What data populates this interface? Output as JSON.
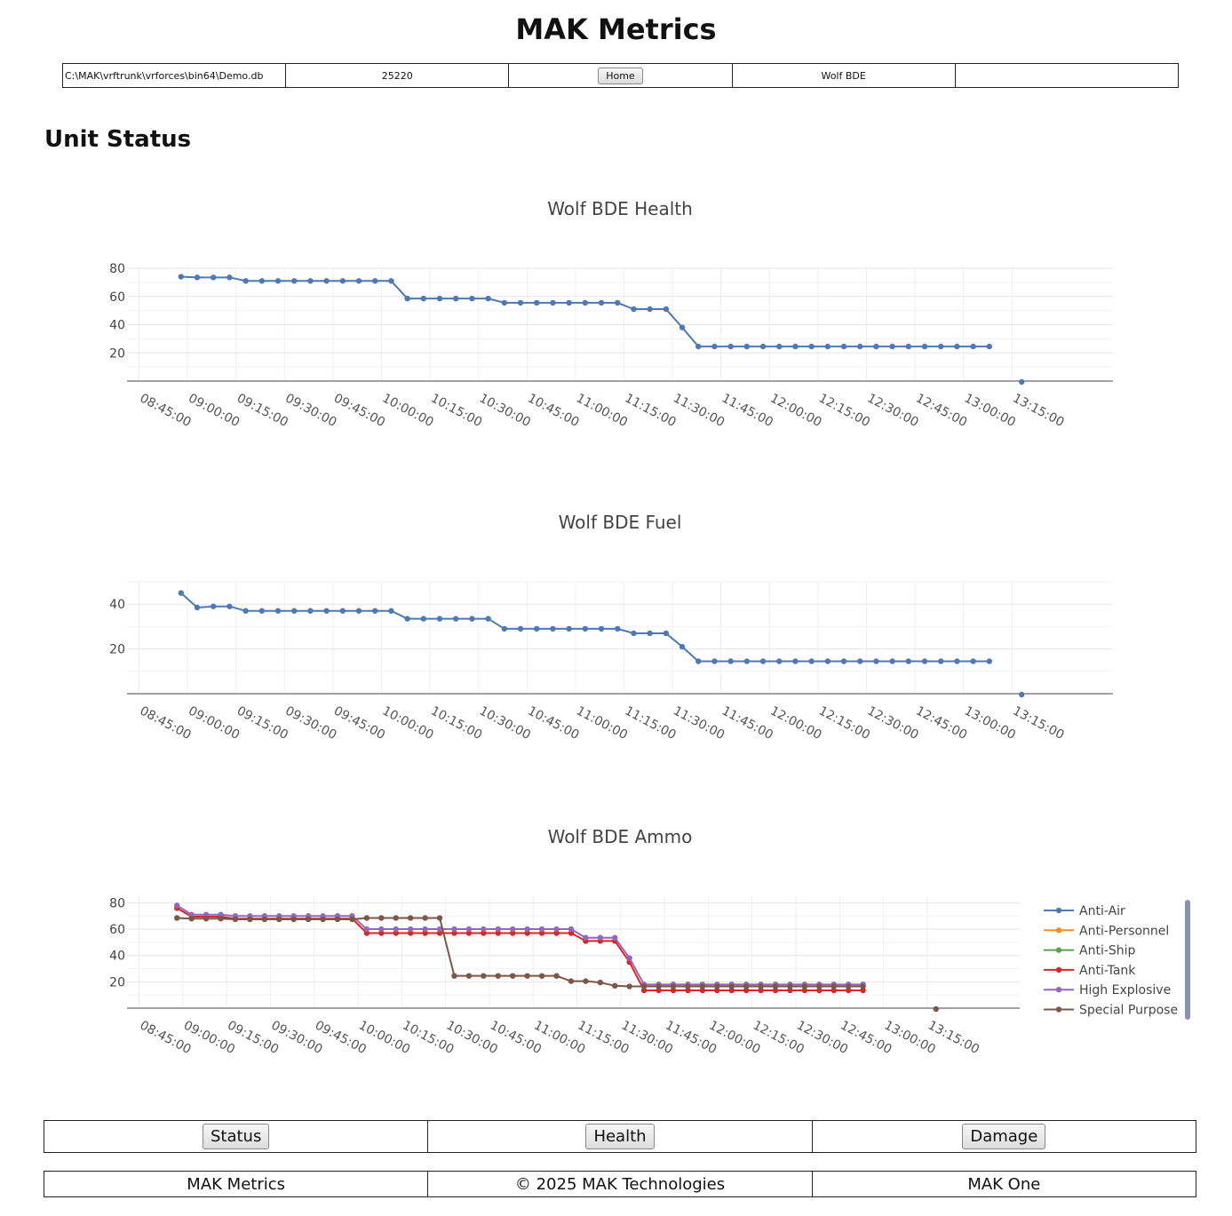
{
  "header": {
    "title": "MAK Metrics",
    "db_path": "C:\\MAK\\vrftrunk\\vrforces\\bin64\\Demo.db",
    "session_id": "25220",
    "home_label": "Home",
    "unit_name": "Wolf BDE",
    "extra": ""
  },
  "section": {
    "title": "Unit Status"
  },
  "charts": {
    "x_tick_labels": [
      "08:45:00",
      "09:00:00",
      "09:15:00",
      "09:30:00",
      "09:45:00",
      "10:00:00",
      "10:15:00",
      "10:30:00",
      "10:45:00",
      "11:00:00",
      "11:15:00",
      "11:30:00",
      "11:45:00",
      "12:00:00",
      "12:15:00",
      "12:30:00",
      "12:45:00",
      "13:00:00",
      "13:15:00"
    ],
    "series_color": "#4e79b4"
  },
  "chart_data": [
    {
      "type": "line",
      "title": "Wolf BDE Health",
      "x_start": "08:58:00",
      "x_step_seconds": 300,
      "ylim": [
        0,
        80
      ],
      "y_ticks": [
        20,
        40,
        60,
        80
      ],
      "grid": true,
      "series": [
        {
          "color": "#4e79b4",
          "values": [
            74,
            73.5,
            73.5,
            73.5,
            71,
            71,
            71,
            71,
            71,
            71,
            71,
            71,
            71,
            71,
            58.5,
            58.5,
            58.5,
            58.5,
            58.5,
            58.5,
            55.5,
            55.5,
            55.5,
            55.5,
            55.5,
            55.5,
            55.5,
            55.5,
            51,
            51,
            51,
            38,
            24.5,
            24.5,
            24.5,
            24.5,
            24.5,
            24.5,
            24.5,
            24.5,
            24.5,
            24.5,
            24.5,
            24.5,
            24.5,
            24.5,
            24.5,
            24.5,
            24.5,
            24.5,
            24.5
          ],
          "extra_point": {
            "x": "13:18:00",
            "y": 0
          }
        }
      ]
    },
    {
      "type": "line",
      "title": "Wolf BDE Fuel",
      "x_start": "08:58:00",
      "x_step_seconds": 300,
      "ylim": [
        0,
        50
      ],
      "y_ticks": [
        20,
        40
      ],
      "grid": true,
      "series": [
        {
          "color": "#4e79b4",
          "values": [
            45,
            38.5,
            39,
            39,
            37,
            37,
            37,
            37,
            37,
            37,
            37,
            37,
            37,
            37,
            33.5,
            33.5,
            33.5,
            33.5,
            33.5,
            33.5,
            29,
            29,
            29,
            29,
            29,
            29,
            29,
            29,
            27,
            27,
            27,
            21,
            14.5,
            14.5,
            14.5,
            14.5,
            14.5,
            14.5,
            14.5,
            14.5,
            14.5,
            14.5,
            14.5,
            14.5,
            14.5,
            14.5,
            14.5,
            14.5,
            14.5,
            14.5,
            14.5
          ],
          "extra_point": {
            "x": "13:18:00",
            "y": 0
          }
        }
      ]
    },
    {
      "type": "line",
      "title": "Wolf BDE Ammo",
      "x_start": "08:58:00",
      "x_step_seconds": 300,
      "ylim": [
        0,
        85
      ],
      "y_ticks": [
        20,
        40,
        60,
        80
      ],
      "grid": true,
      "legend": "right",
      "series": [
        {
          "name": "Anti-Air",
          "color": "#4e79b4",
          "values": []
        },
        {
          "name": "Anti-Personnel",
          "color": "#f28e2b",
          "values": []
        },
        {
          "name": "Anti-Ship",
          "color": "#59a14f",
          "values": []
        },
        {
          "name": "Anti-Tank",
          "color": "#d62728",
          "values": [
            76,
            69.5,
            69.5,
            69.5,
            68,
            68,
            68,
            68,
            68,
            68,
            68,
            68,
            68,
            57,
            57,
            57,
            57,
            57,
            57,
            57,
            57,
            57,
            57,
            57,
            57,
            57,
            57,
            57,
            51,
            51,
            51,
            35,
            13.5,
            13.5,
            13.5,
            13.5,
            13.5,
            13.5,
            13.5,
            13.5,
            13.5,
            13.5,
            13.5,
            13.5,
            13.5,
            13.5,
            13.5,
            13.5
          ]
        },
        {
          "name": "High Explosive",
          "color": "#9467bd",
          "values": [
            78,
            71,
            71,
            71,
            70,
            70,
            70,
            70,
            70,
            70,
            70,
            70,
            70,
            60,
            60,
            60,
            60,
            60,
            60,
            60,
            60,
            60,
            60,
            60,
            60,
            60,
            60,
            60,
            53.5,
            53.5,
            53.5,
            38,
            18,
            18,
            18,
            18,
            18,
            18,
            18,
            18,
            18,
            18,
            18,
            18,
            18,
            18,
            18,
            18
          ]
        },
        {
          "name": "Special Purpose",
          "color": "#7f5548",
          "values": [
            68.5,
            68,
            68,
            68,
            67.5,
            67.5,
            67.5,
            67.5,
            67.5,
            67.5,
            67.5,
            67.5,
            67.5,
            68.5,
            68.5,
            68.5,
            68.5,
            68.5,
            68.5,
            24.5,
            24.5,
            24.5,
            24.5,
            24.5,
            24.5,
            24.5,
            24.5,
            20.5,
            20.5,
            19.5,
            17,
            16.5,
            16.5,
            16.5,
            16.5,
            16.5,
            16.5,
            16.5,
            16.5,
            16.5,
            16.5,
            16.5,
            16.5,
            16.5,
            16.5,
            16.5,
            16.5,
            16.5
          ],
          "extra_point": {
            "x": "13:18:00",
            "y": 0
          }
        }
      ]
    }
  ],
  "nav": {
    "status": "Status",
    "health": "Health",
    "damage": "Damage"
  },
  "footer": {
    "left": "MAK Metrics",
    "center": "© 2025 MAK Technologies",
    "right": "MAK One"
  }
}
